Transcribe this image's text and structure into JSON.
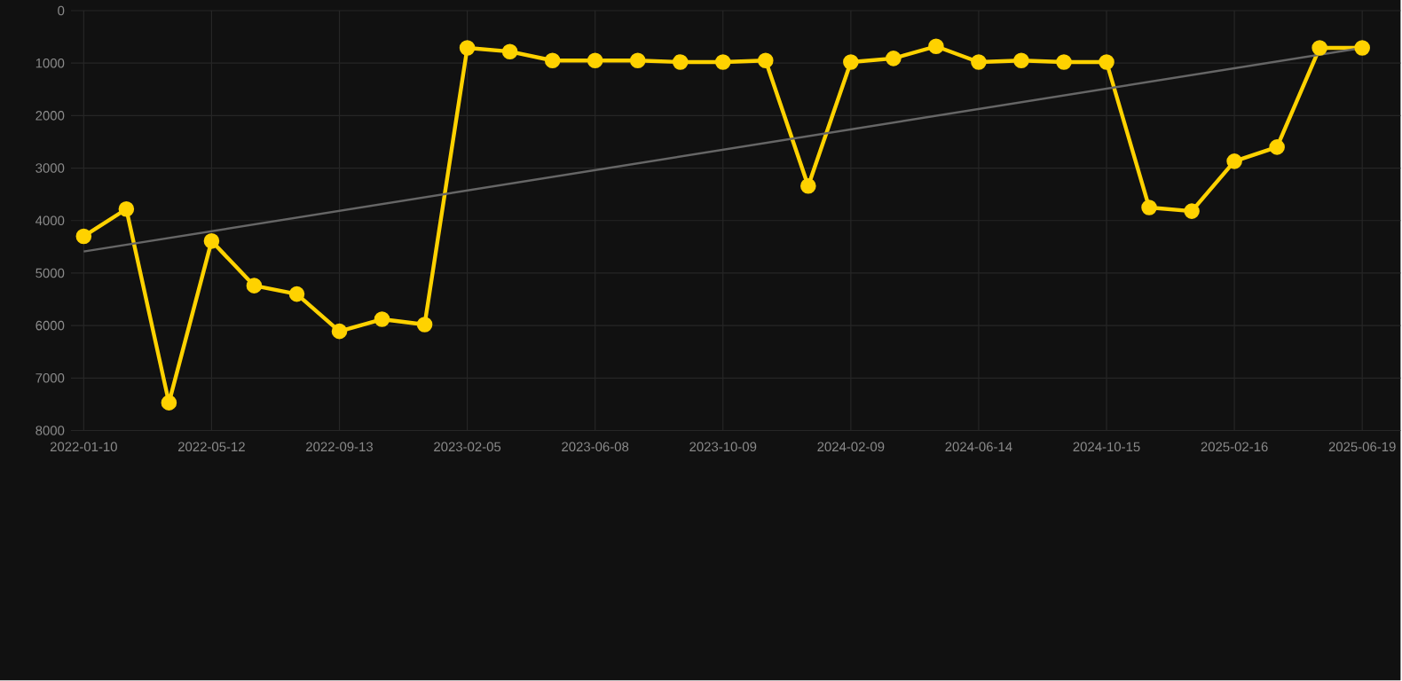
{
  "chart_data": {
    "type": "line",
    "categories": [
      "2022-01-10",
      null,
      null,
      "2022-05-12",
      null,
      null,
      "2022-09-13",
      null,
      null,
      "2023-02-05",
      null,
      null,
      "2023-06-08",
      null,
      null,
      "2023-10-09",
      null,
      null,
      "2024-02-09",
      null,
      null,
      "2024-06-14",
      null,
      null,
      "2024-10-15",
      null,
      null,
      "2025-02-16",
      null,
      null,
      "2025-06-19"
    ],
    "series": [
      {
        "color": "#ffd200",
        "marker": "circle",
        "values": [
          4300,
          3780,
          7470,
          4390,
          5240,
          5400,
          6110,
          5880,
          5980,
          710,
          780,
          950,
          950,
          950,
          980,
          980,
          950,
          3340,
          980,
          910,
          680,
          980,
          950,
          980,
          980,
          3750,
          3820,
          2870,
          2600,
          710,
          710
        ]
      },
      {
        "type": "line",
        "color": "#666666",
        "marker": "none",
        "values": [
          4590,
          null,
          null,
          null,
          null,
          null,
          null,
          null,
          null,
          null,
          null,
          null,
          null,
          null,
          null,
          null,
          null,
          null,
          null,
          null,
          null,
          null,
          null,
          null,
          null,
          null,
          null,
          null,
          null,
          null,
          710
        ]
      }
    ],
    "ylim": [
      8000,
      0
    ],
    "yticks": [
      0,
      1000,
      2000,
      3000,
      4000,
      5000,
      6000,
      7000,
      8000
    ],
    "grid": true,
    "line_style": "solid"
  }
}
